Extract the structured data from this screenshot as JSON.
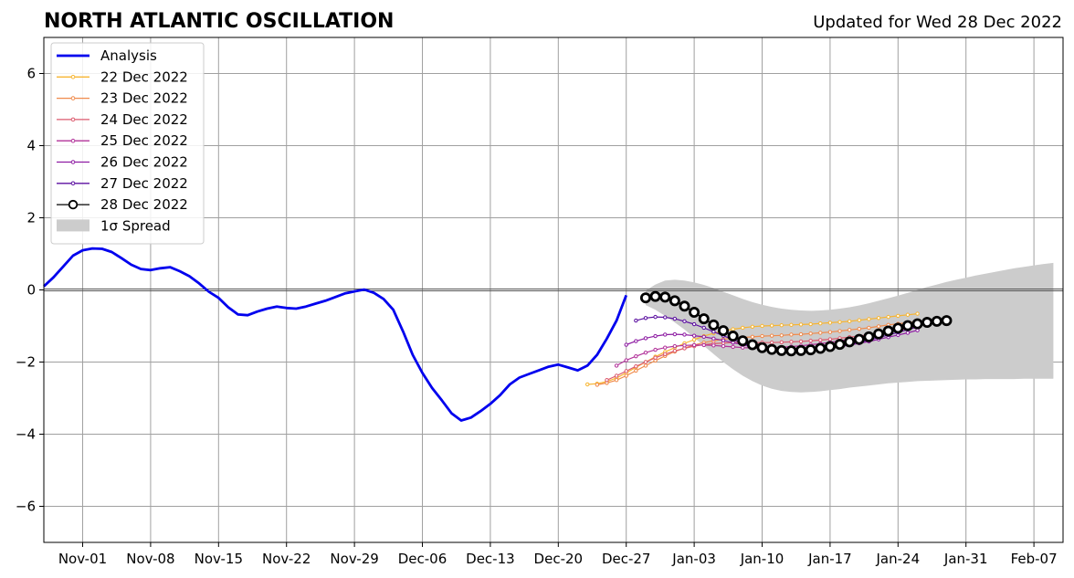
{
  "chart_data": {
    "type": "line",
    "title": "NORTH ATLANTIC OSCILLATION",
    "subtitle": "Updated for Wed 28 Dec 2022",
    "xlabel": "",
    "ylabel": "",
    "ylim": [
      -7,
      7
    ],
    "yticks": [
      -6,
      -4,
      -2,
      0,
      2,
      4,
      6
    ],
    "ytick_labels": [
      "−6",
      "−4",
      "−2",
      "0",
      "2",
      "4",
      "6"
    ],
    "xlim": [
      "2022-10-28",
      "2023-02-10"
    ],
    "xticks": [
      "2022-11-01",
      "2022-11-08",
      "2022-11-15",
      "2022-11-22",
      "2022-11-29",
      "2022-12-06",
      "2022-12-13",
      "2022-12-20",
      "2022-12-27",
      "2023-01-03",
      "2023-01-10",
      "2023-01-17",
      "2023-01-24",
      "2023-01-31",
      "2023-02-07"
    ],
    "xtick_labels": [
      "Nov-01",
      "Nov-08",
      "Nov-15",
      "Nov-22",
      "Nov-29",
      "Dec-06",
      "Dec-13",
      "Dec-20",
      "Dec-27",
      "Jan-03",
      "Jan-10",
      "Jan-17",
      "Jan-24",
      "Jan-31",
      "Feb-07"
    ],
    "grid": true,
    "legend_position": "top-left",
    "analysis": {
      "name": "Analysis",
      "color": "#0000ee",
      "start": "2022-10-28",
      "values": [
        0.1,
        0.35,
        0.65,
        0.95,
        1.1,
        1.15,
        1.14,
        1.05,
        0.88,
        0.7,
        0.58,
        0.55,
        0.6,
        0.63,
        0.52,
        0.38,
        0.18,
        -0.05,
        -0.22,
        -0.48,
        -0.68,
        -0.7,
        -0.6,
        -0.52,
        -0.46,
        -0.5,
        -0.52,
        -0.46,
        -0.38,
        -0.3,
        -0.2,
        -0.1,
        -0.04,
        0.01,
        -0.08,
        -0.25,
        -0.55,
        -1.15,
        -1.8,
        -2.3,
        -2.72,
        -3.06,
        -3.42,
        -3.62,
        -3.54,
        -3.36,
        -3.16,
        -2.92,
        -2.62,
        -2.43,
        -2.33,
        -2.23,
        -2.13,
        -2.07,
        -2.15,
        -2.23,
        -2.1,
        -1.8,
        -1.35,
        -0.85,
        -0.15
      ]
    },
    "forecasts": [
      {
        "name": "22 Dec 2022",
        "color": "#f7b531",
        "start": "2022-12-23",
        "values": [
          -2.62,
          -2.6,
          -2.54,
          -2.44,
          -2.3,
          -2.15,
          -2.0,
          -1.85,
          -1.72,
          -1.6,
          -1.48,
          -1.38,
          -1.28,
          -1.2,
          -1.14,
          -1.09,
          -1.05,
          -1.02,
          -1.0,
          -0.99,
          -0.98,
          -0.97,
          -0.96,
          -0.95,
          -0.93,
          -0.91,
          -0.89,
          -0.87,
          -0.84,
          -0.81,
          -0.78,
          -0.75,
          -0.72,
          -0.69,
          -0.66
        ]
      },
      {
        "name": "23 Dec 2022",
        "color": "#f08a4b",
        "start": "2022-12-24",
        "values": [
          -2.63,
          -2.58,
          -2.5,
          -2.38,
          -2.24,
          -2.1,
          -1.96,
          -1.83,
          -1.71,
          -1.61,
          -1.53,
          -1.46,
          -1.41,
          -1.37,
          -1.34,
          -1.32,
          -1.3,
          -1.28,
          -1.27,
          -1.26,
          -1.24,
          -1.23,
          -1.21,
          -1.19,
          -1.17,
          -1.14,
          -1.11,
          -1.08,
          -1.05,
          -1.01,
          -0.97,
          -0.94,
          -0.91,
          -0.88
        ]
      },
      {
        "name": "24 Dec 2022",
        "color": "#dc5a6e",
        "start": "2022-12-25",
        "values": [
          -2.5,
          -2.38,
          -2.25,
          -2.12,
          -2.0,
          -1.88,
          -1.78,
          -1.69,
          -1.62,
          -1.56,
          -1.52,
          -1.49,
          -1.47,
          -1.46,
          -1.46,
          -1.46,
          -1.46,
          -1.46,
          -1.45,
          -1.44,
          -1.43,
          -1.41,
          -1.39,
          -1.37,
          -1.34,
          -1.31,
          -1.28,
          -1.24,
          -1.2,
          -1.16,
          -1.12,
          -1.08,
          -1.04
        ]
      },
      {
        "name": "25 Dec 2022",
        "color": "#b2329a",
        "start": "2022-12-26",
        "values": [
          -2.1,
          -1.95,
          -1.84,
          -1.74,
          -1.66,
          -1.6,
          -1.56,
          -1.54,
          -1.53,
          -1.53,
          -1.54,
          -1.56,
          -1.58,
          -1.6,
          -1.61,
          -1.61,
          -1.6,
          -1.59,
          -1.57,
          -1.55,
          -1.52,
          -1.49,
          -1.45,
          -1.41,
          -1.37,
          -1.32,
          -1.27,
          -1.22,
          -1.17,
          -1.11,
          -1.05,
          -1.0
        ]
      },
      {
        "name": "26 Dec 2022",
        "color": "#8e1da3",
        "start": "2022-12-27",
        "values": [
          -1.52,
          -1.42,
          -1.34,
          -1.28,
          -1.24,
          -1.23,
          -1.24,
          -1.27,
          -1.3,
          -1.35,
          -1.4,
          -1.46,
          -1.52,
          -1.58,
          -1.63,
          -1.67,
          -1.69,
          -1.7,
          -1.7,
          -1.68,
          -1.65,
          -1.62,
          -1.58,
          -1.53,
          -1.48,
          -1.43,
          -1.37,
          -1.31,
          -1.25,
          -1.19,
          -1.12
        ]
      },
      {
        "name": "27 Dec 2022",
        "color": "#5b0fa0",
        "start": "2022-12-28",
        "values": [
          -0.85,
          -0.78,
          -0.75,
          -0.76,
          -0.8,
          -0.87,
          -0.95,
          -1.05,
          -1.16,
          -1.27,
          -1.38,
          -1.48,
          -1.57,
          -1.64,
          -1.69,
          -1.72,
          -1.73,
          -1.72,
          -1.7,
          -1.66,
          -1.62,
          -1.57,
          -1.51,
          -1.45,
          -1.39,
          -1.32,
          -1.25,
          -1.18,
          -1.1,
          -1.03
        ]
      },
      {
        "name": "28 Dec 2022",
        "color": "#000000",
        "start": "2022-12-29",
        "values": [
          -0.22,
          -0.18,
          -0.2,
          -0.3,
          -0.45,
          -0.62,
          -0.8,
          -0.97,
          -1.13,
          -1.28,
          -1.41,
          -1.52,
          -1.6,
          -1.65,
          -1.68,
          -1.69,
          -1.68,
          -1.66,
          -1.62,
          -1.57,
          -1.51,
          -1.44,
          -1.37,
          -1.3,
          -1.22,
          -1.14,
          -1.06,
          -0.99,
          -0.94,
          -0.9,
          -0.87,
          -0.85
        ]
      }
    ],
    "spread": {
      "name": "1σ Spread",
      "color": "#cccccc",
      "start": "2022-12-29",
      "upper": [
        -0.02,
        0.15,
        0.26,
        0.28,
        0.26,
        0.21,
        0.14,
        0.05,
        -0.05,
        -0.15,
        -0.25,
        -0.34,
        -0.41,
        -0.47,
        -0.52,
        -0.55,
        -0.57,
        -0.58,
        -0.57,
        -0.55,
        -0.52,
        -0.48,
        -0.43,
        -0.37,
        -0.3,
        -0.23,
        -0.16,
        -0.08,
        0.0,
        0.08,
        0.15,
        0.22,
        0.28,
        0.34,
        0.4,
        0.45,
        0.5,
        0.55,
        0.6,
        0.64,
        0.68,
        0.72,
        0.75
      ],
      "lower": [
        -0.42,
        -0.55,
        -0.72,
        -0.9,
        -1.1,
        -1.32,
        -1.55,
        -1.78,
        -2.0,
        -2.2,
        -2.38,
        -2.53,
        -2.65,
        -2.74,
        -2.8,
        -2.83,
        -2.84,
        -2.83,
        -2.81,
        -2.78,
        -2.75,
        -2.71,
        -2.68,
        -2.65,
        -2.62,
        -2.59,
        -2.57,
        -2.55,
        -2.53,
        -2.52,
        -2.51,
        -2.5,
        -2.49,
        -2.48,
        -2.48,
        -2.47,
        -2.47,
        -2.47,
        -2.47,
        -2.46,
        -2.46,
        -2.46,
        -2.46
      ]
    }
  }
}
